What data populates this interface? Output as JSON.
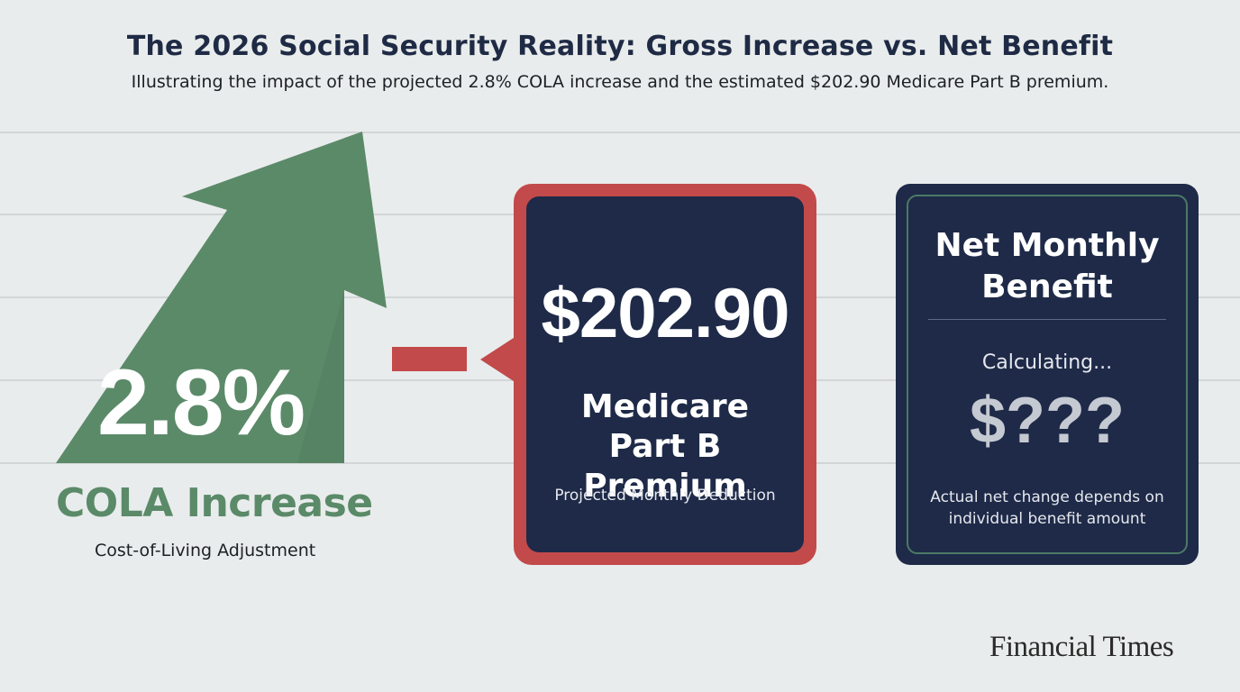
{
  "header": {
    "title": "The 2026 Social Security Reality: Gross Increase vs. Net Benefit",
    "subtitle": "Illustrating the impact of the projected 2.8% COLA increase and the estimated $202.90 Medicare Part B premium."
  },
  "cola": {
    "value": "2.8%",
    "label": "COLA Increase",
    "sublabel": "Cost-of-Living Adjustment",
    "icon": "up-arrow-icon"
  },
  "operator": {
    "icon": "minus-icon"
  },
  "premium": {
    "value": "$202.90",
    "label": "Medicare Part B Premium",
    "sublabel": "Projected Monthly Deduction"
  },
  "net": {
    "title": "Net Monthly Benefit",
    "status": "Calculating...",
    "value": "$???",
    "note": "Actual net change depends on individual benefit amount"
  },
  "brand": "Financial Times",
  "colors": {
    "background": "#e9ecec",
    "green": "#5b8a69",
    "red": "#c24a4a",
    "navy": "#1e2a48",
    "title": "#1f2b45"
  }
}
